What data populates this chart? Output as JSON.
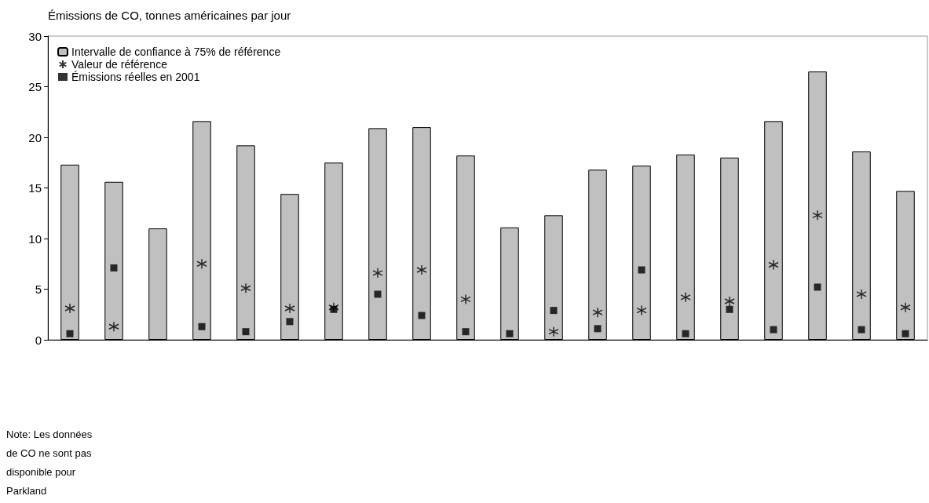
{
  "chart_data": {
    "type": "bar",
    "title": "Émissions de CO, tonnes américaines par jour",
    "categories": [
      null,
      null,
      null,
      null,
      null,
      null,
      null,
      null,
      null,
      null,
      null,
      null,
      null,
      null,
      null,
      null,
      null,
      null,
      null,
      null
    ],
    "series": [
      {
        "name": "Intervalle de confiance à 75% de référence",
        "color": "#c0c0c0",
        "values": [
          17.3,
          15.6,
          11.0,
          21.6,
          19.2,
          14.4,
          17.5,
          20.9,
          21.0,
          18.2,
          11.1,
          12.3,
          16.8,
          17.2,
          18.3,
          18.0,
          21.6,
          26.5,
          18.6,
          14.7
        ]
      },
      {
        "name": "Valeur de référence",
        "type": "scatter",
        "marker": "cross",
        "color": "#000000",
        "values": [
          3.1,
          1.3,
          null,
          7.5,
          5.1,
          3.1,
          3.2,
          6.6,
          6.9,
          4.0,
          null,
          0.8,
          2.7,
          2.9,
          4.2,
          3.8,
          7.4,
          12.3,
          4.5,
          3.2
        ]
      },
      {
        "name": "Émissions réelles en 2001",
        "type": "scatter",
        "marker": "square",
        "color": "#000000",
        "values": [
          0.6,
          7.1,
          null,
          1.3,
          0.8,
          1.8,
          3.0,
          4.5,
          2.4,
          0.8,
          0.6,
          2.9,
          1.1,
          6.9,
          0.6,
          3.0,
          1.0,
          5.2,
          1.0,
          0.6
        ]
      }
    ],
    "ylim": [
      0,
      30
    ],
    "yticks": [
      0,
      5,
      10,
      15,
      20,
      25,
      30
    ],
    "grid": false,
    "legend": "top left",
    "annotations": [
      "Note: Les données de CO ne sont pas disponible pour Parkland"
    ]
  }
}
